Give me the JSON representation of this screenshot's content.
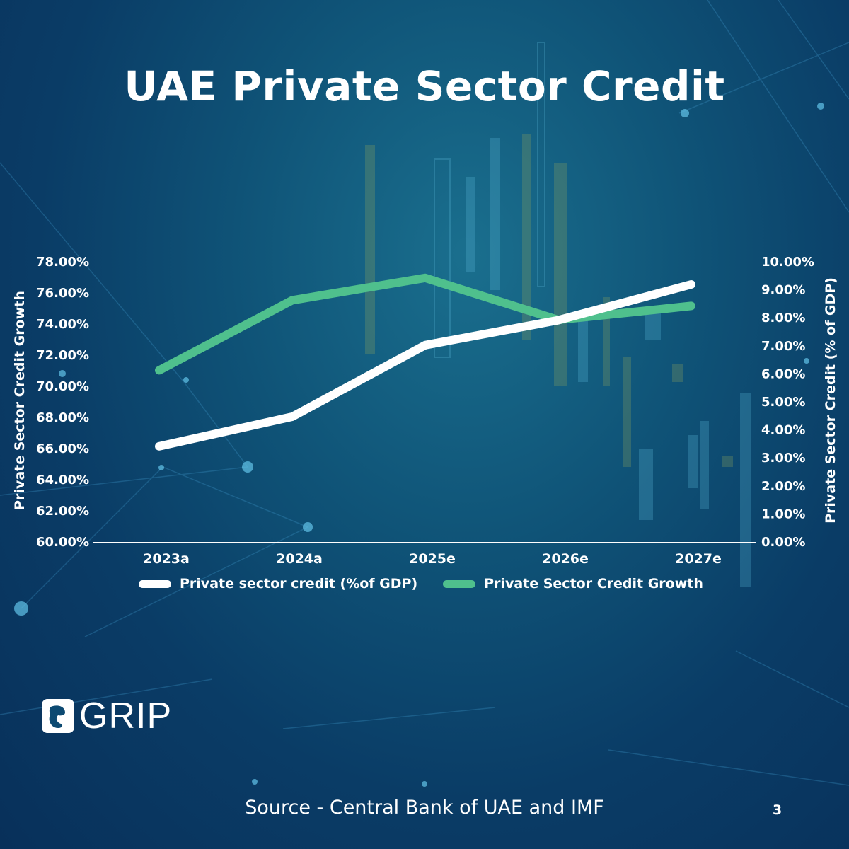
{
  "title": "UAE Private Sector Credit",
  "source": "Source - Central Bank of UAE and IMF",
  "page_number": "3",
  "logo": {
    "text": "GRIP"
  },
  "colors": {
    "series_credit_gdp": "#ffffff",
    "series_credit_growth": "#4fc08d",
    "background": "#0d4a72"
  },
  "chart_data": {
    "type": "line",
    "title": "UAE Private Sector Credit",
    "categories": [
      "2023a",
      "2024a",
      "2025e",
      "2026e",
      "2027e"
    ],
    "left_axis": {
      "label": "Private Sector Credit Growth",
      "ylim": [
        60,
        78
      ],
      "ticks": [
        "78.00%",
        "76.00%",
        "74.00%",
        "72.00%",
        "70.00%",
        "68.00%",
        "66.00%",
        "64.00%",
        "62.00%",
        "60.00%"
      ]
    },
    "right_axis": {
      "label": "Private Sector Credit (% of GDP)",
      "ylim": [
        0,
        10
      ],
      "ticks": [
        "10.00%",
        "9.00%",
        "8.00%",
        "7.00%",
        "6.00%",
        "5.00%",
        "4.00%",
        "3.00%",
        "2.00%",
        "1.00%",
        "0.00%"
      ]
    },
    "series": [
      {
        "name": "Private sector credit (%of GDP)",
        "axis": "left",
        "values": [
          66.1,
          68.0,
          72.6,
          74.2,
          76.5
        ]
      },
      {
        "name": "Private Sector Credit Growth",
        "axis": "right",
        "values": [
          6.1,
          8.6,
          9.4,
          7.9,
          8.4
        ]
      }
    ],
    "legend": "bottom",
    "grid": false
  }
}
